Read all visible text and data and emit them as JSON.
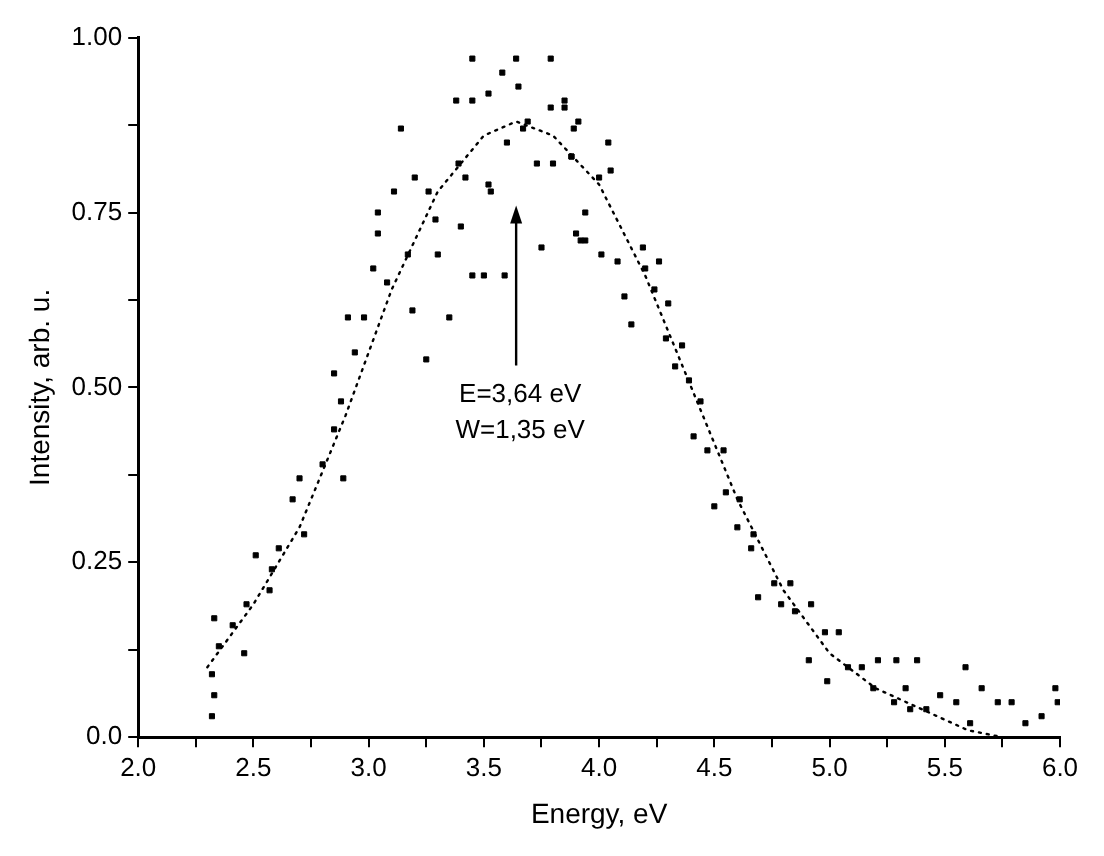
{
  "chart_data": {
    "type": "scatter",
    "xlabel": "Energy, eV",
    "ylabel": "Intensity, arb. u.",
    "xlim": [
      2.0,
      6.0
    ],
    "xticks": [
      {
        "value": 2,
        "label": "2.0"
      },
      {
        "value": 2.25,
        "label": null
      },
      2.5,
      {
        "value": 2.75,
        "label": null
      },
      {
        "value": 3,
        "label": "3.0"
      },
      {
        "value": 3.25,
        "label": null
      },
      3.5,
      {
        "value": 3.75,
        "label": null
      },
      {
        "value": 4,
        "label": "4.0"
      },
      {
        "value": 4.25,
        "label": null
      },
      4.5,
      {
        "value": 4.75,
        "label": null
      },
      {
        "value": 5,
        "label": "5.0"
      },
      {
        "value": 5.25,
        "label": null
      },
      5.5,
      {
        "value": 5.75,
        "label": null
      },
      {
        "value": 6,
        "label": "6.0"
      }
    ],
    "ylim": [
      0,
      1.0
    ],
    "yticks": [
      {
        "value": 0,
        "label": "0.0"
      },
      {
        "value": 0.125,
        "label": null
      },
      0.25,
      {
        "value": 0.375,
        "label": null
      },
      {
        "value": 0.5,
        "label": "0.50"
      },
      {
        "value": 0.625,
        "label": null
      },
      0.75,
      {
        "value": 0.875,
        "label": null
      },
      {
        "value": 1,
        "label": "1.00"
      }
    ],
    "grid": false,
    "legend": false,
    "annotations": [
      "E=3,64 eV\nW=1,35 eV"
    ],
    "series": [
      {
        "color": "#000000",
        "marker": "square",
        "x": [
          2.32,
          2.33,
          2.32,
          2.35,
          2.33,
          2.41,
          2.47,
          2.51,
          2.46,
          2.57,
          2.58,
          2.61,
          2.67,
          2.72,
          2.7,
          2.8,
          2.85,
          2.88,
          2.85,
          2.89,
          2.94,
          2.91,
          2.98,
          3.02,
          3.04,
          3.04,
          3.08,
          3.11,
          3.14,
          3.17,
          3.19,
          3.25,
          3.2,
          3.26,
          3.3,
          3.29,
          3.35,
          3.38,
          3.39,
          3.4,
          3.42,
          3.45,
          3.45,
          3.45,
          3.52,
          3.52,
          3.53,
          3.5,
          3.58,
          3.6,
          3.64,
          3.65,
          3.67,
          3.59,
          3.69,
          3.73,
          3.75,
          3.79,
          3.79,
          3.8,
          3.85,
          3.89,
          3.88,
          3.9,
          3.94,
          3.85,
          3.91,
          3.88,
          4.04,
          4.05,
          4.0,
          3.94,
          3.92,
          4.01,
          4.08,
          4.11,
          4.14,
          4.19,
          4.2,
          4.26,
          4.24,
          4.3,
          4.29,
          4.36,
          4.33,
          4.39,
          4.44,
          4.41,
          4.47,
          4.54,
          4.5,
          4.55,
          4.61,
          4.6,
          4.67,
          4.66,
          4.69,
          4.76,
          4.83,
          4.79,
          4.85,
          4.92,
          4.98,
          5.04,
          4.91,
          4.99,
          5.08,
          5.14,
          5.21,
          5.29,
          5.38,
          5.19,
          5.28,
          5.33,
          5.35,
          5.42,
          5.48,
          5.55,
          5.59,
          5.61,
          5.66,
          5.73,
          5.79,
          5.85,
          5.92,
          5.98,
          5.99
        ],
        "values": [
          0.03,
          0.06,
          0.09,
          0.13,
          0.17,
          0.16,
          0.19,
          0.26,
          0.12,
          0.21,
          0.24,
          0.27,
          0.34,
          0.29,
          0.37,
          0.39,
          0.44,
          0.48,
          0.52,
          0.37,
          0.55,
          0.6,
          0.6,
          0.67,
          0.72,
          0.75,
          0.65,
          0.78,
          0.87,
          0.69,
          0.61,
          0.54,
          0.8,
          0.78,
          0.69,
          0.74,
          0.6,
          0.91,
          0.82,
          0.73,
          0.8,
          0.97,
          0.91,
          0.66,
          0.92,
          0.79,
          0.78,
          0.66,
          0.95,
          0.85,
          0.97,
          0.93,
          0.87,
          0.66,
          0.88,
          0.82,
          0.7,
          0.97,
          0.9,
          0.82,
          0.9,
          0.87,
          0.83,
          0.72,
          0.71,
          0.91,
          0.88,
          0.83,
          0.85,
          0.81,
          0.8,
          0.75,
          0.71,
          0.69,
          0.68,
          0.63,
          0.59,
          0.7,
          0.67,
          0.68,
          0.64,
          0.62,
          0.57,
          0.56,
          0.53,
          0.51,
          0.48,
          0.43,
          0.41,
          0.41,
          0.33,
          0.35,
          0.34,
          0.3,
          0.29,
          0.27,
          0.2,
          0.22,
          0.22,
          0.19,
          0.18,
          0.19,
          0.15,
          0.15,
          0.11,
          0.08,
          0.1,
          0.1,
          0.11,
          0.11,
          0.11,
          0.07,
          0.05,
          0.07,
          0.04,
          0.04,
          0.06,
          0.05,
          0.1,
          0.02,
          0.07,
          0.05,
          0.05,
          0.02,
          0.03,
          0.07,
          0.05
        ]
      },
      {
        "type": "line",
        "color": "#000000",
        "marker": "none",
        "line_style": "dotted",
        "x": [
          2.3,
          2.5,
          2.7,
          2.9,
          3.1,
          3.3,
          3.5,
          3.64,
          3.8,
          4.0,
          4.2,
          4.4,
          4.6,
          4.8,
          5.0,
          5.2,
          5.4,
          5.6,
          5.75
        ],
        "values": [
          0.1,
          0.19,
          0.3,
          0.46,
          0.64,
          0.78,
          0.86,
          0.88,
          0.86,
          0.79,
          0.66,
          0.5,
          0.34,
          0.21,
          0.12,
          0.07,
          0.04,
          0.01,
          0.0
        ]
      }
    ]
  }
}
